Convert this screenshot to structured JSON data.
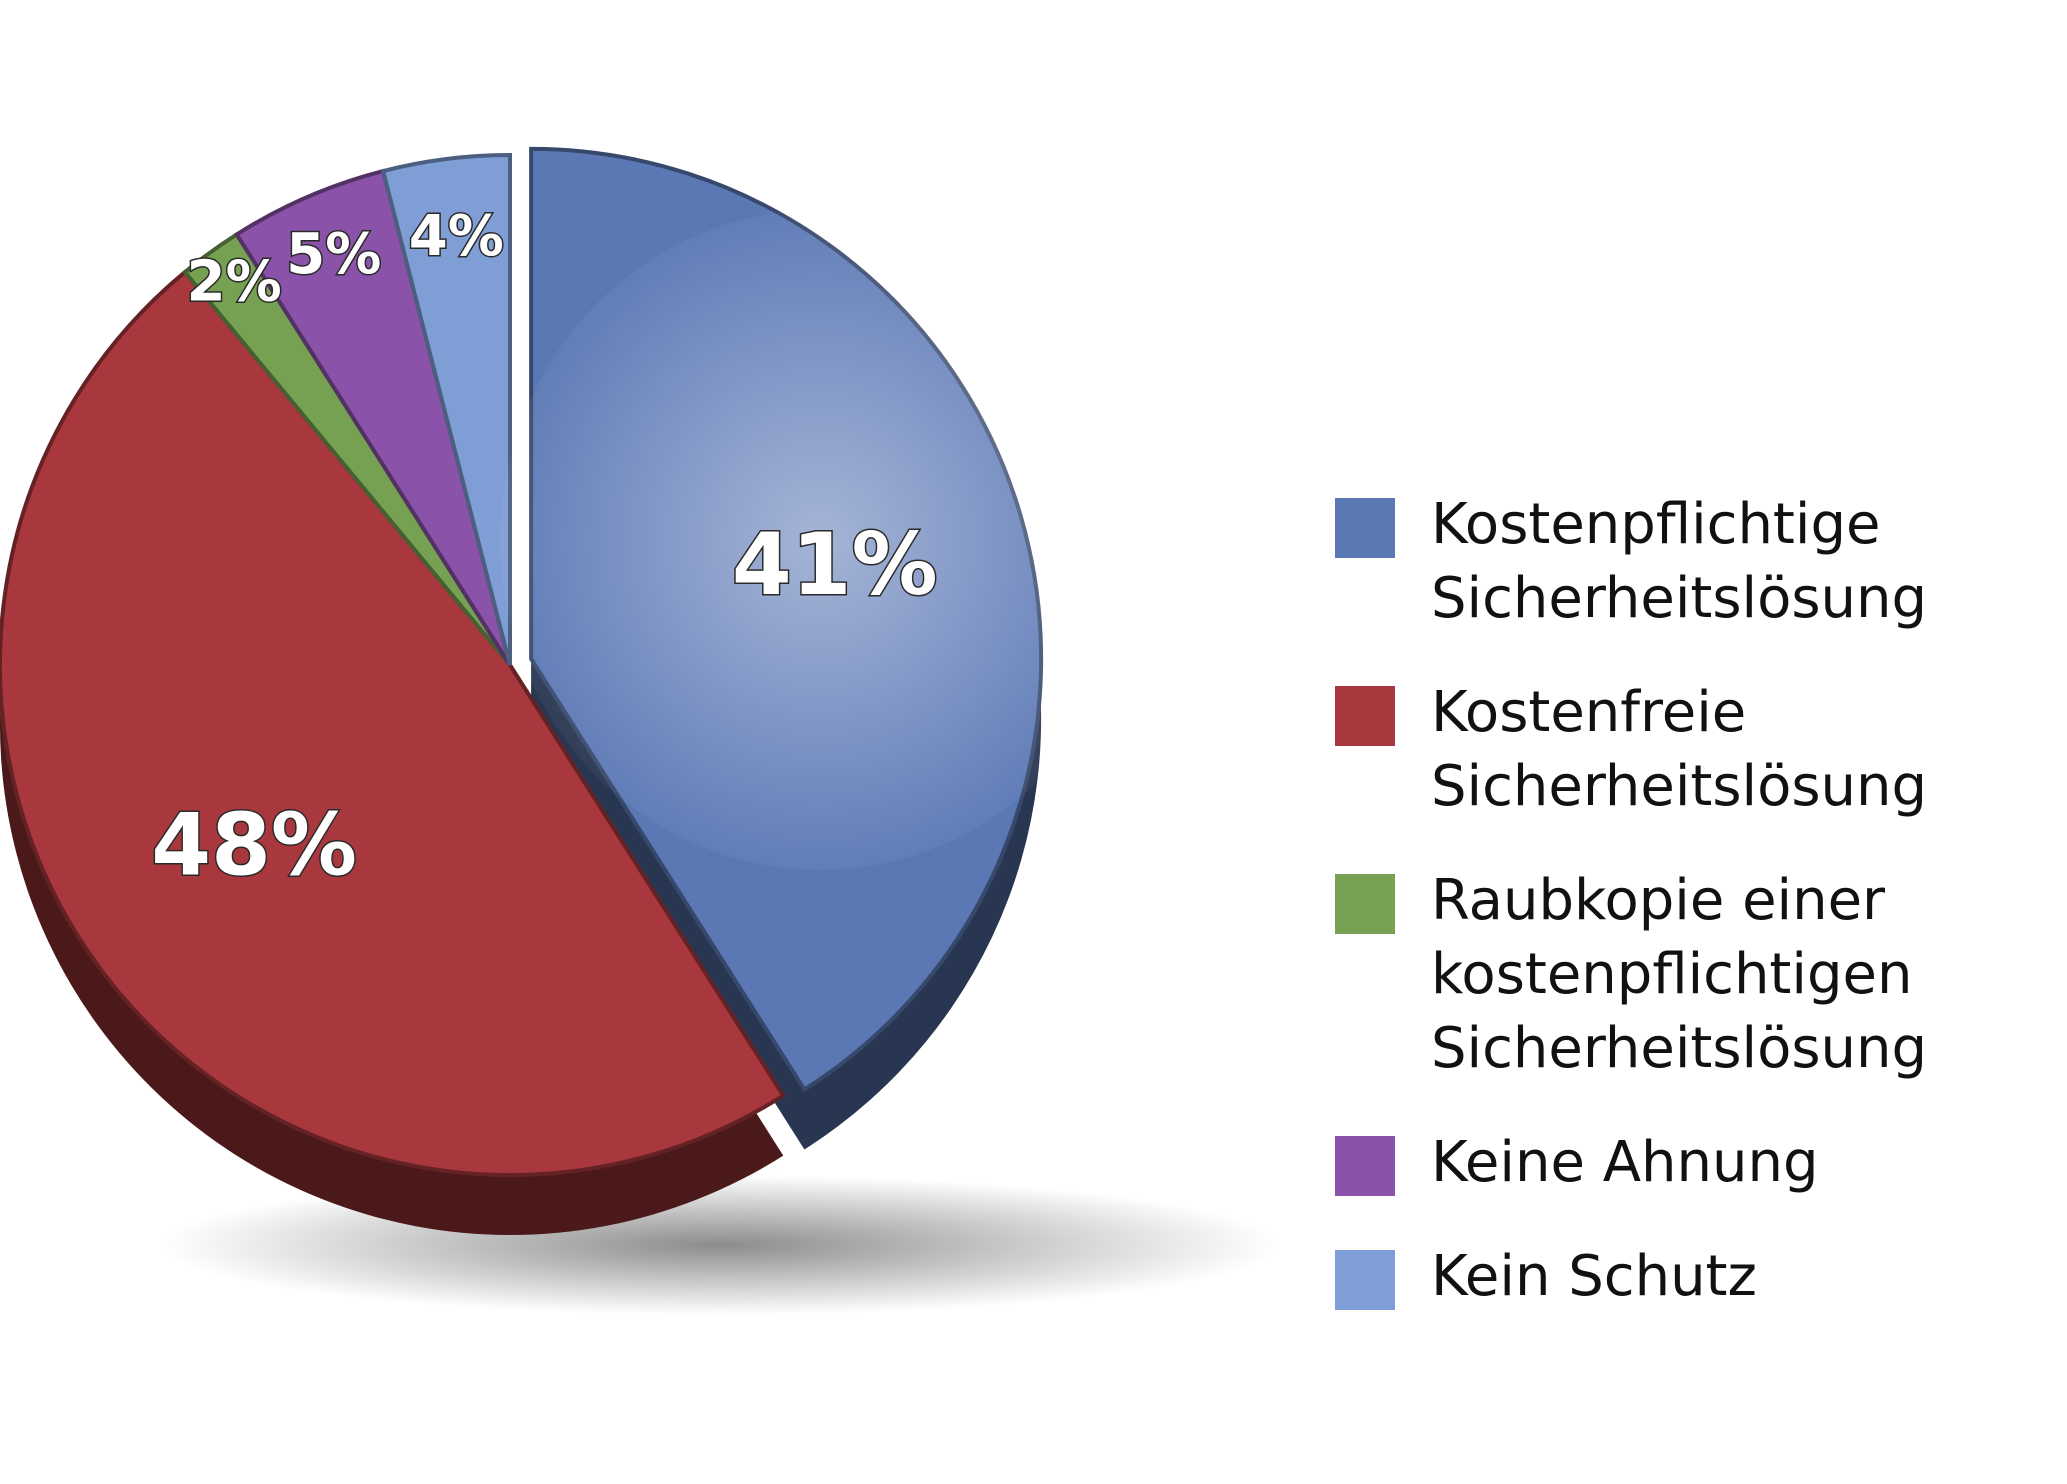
{
  "chart_data": {
    "type": "pie",
    "title": "",
    "legend_position": "right",
    "slices": [
      {
        "name": "Kostenpflichtige\nSicherheitslösung",
        "value": 41,
        "label": "41%",
        "color": "#5b78b5"
      },
      {
        "name": "Kostenfreie\nSicherheitslösung",
        "value": 48,
        "label": "48%",
        "color": "#a8383d"
      },
      {
        "name": "Raubkopie einer\nkostenpflichtigen\nSicherheitslösung",
        "value": 2,
        "label": "2%",
        "color": "#76a052"
      },
      {
        "name": "Keine Ahnung",
        "value": 5,
        "label": "5%",
        "color": "#8a52a8"
      },
      {
        "name": "Kein Schutz",
        "value": 4,
        "label": "4%",
        "color": "#809ed6"
      }
    ]
  }
}
